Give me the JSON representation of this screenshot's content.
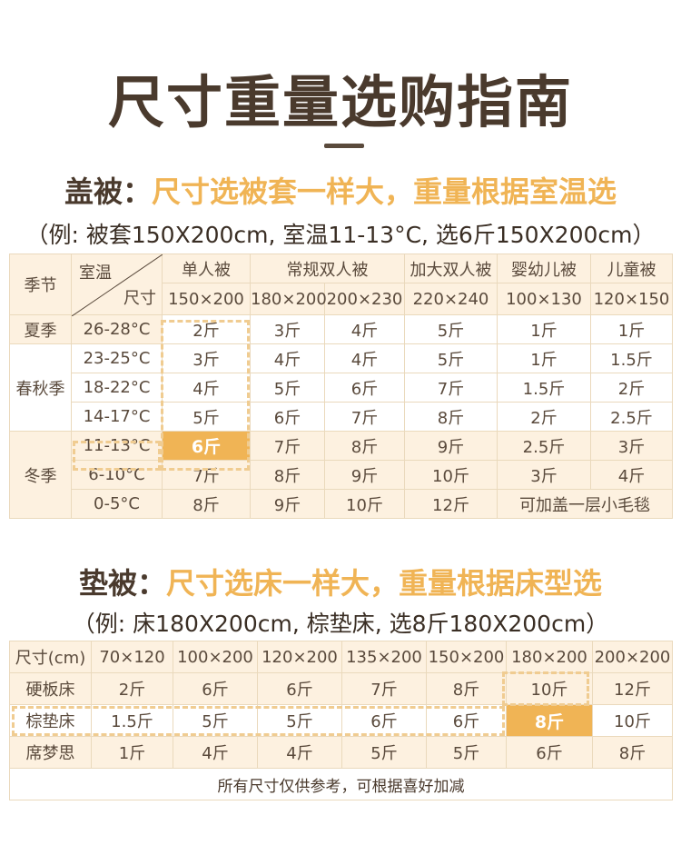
{
  "title": "尺寸重量选购指南",
  "quilt": {
    "heading_a": "盖被：",
    "heading_b": "尺寸选被套一样大，重量根据室温选",
    "example": "（例: 被套150X200cm, 室温11-13°C, 选6斤150X200cm）",
    "corner_top": "室温",
    "corner_bottom": "尺寸",
    "season_header": "季节",
    "groups": [
      "单人被",
      "常规双人被",
      "加大双人被",
      "婴幼儿被",
      "儿童被"
    ],
    "sizes": [
      "150×200",
      "180×200",
      "200×230",
      "220×240",
      "100×130",
      "120×150"
    ],
    "seasons": [
      "夏季",
      "春秋季",
      "冬季"
    ],
    "rows": [
      {
        "temp": "26-28°C",
        "values": [
          "2斤",
          "3斤",
          "4斤",
          "5斤",
          "1斤",
          "1斤"
        ]
      },
      {
        "temp": "23-25°C",
        "values": [
          "3斤",
          "4斤",
          "4斤",
          "5斤",
          "1斤",
          "1.5斤"
        ]
      },
      {
        "temp": "18-22°C",
        "values": [
          "4斤",
          "5斤",
          "6斤",
          "7斤",
          "1.5斤",
          "2斤"
        ]
      },
      {
        "temp": "14-17°C",
        "values": [
          "5斤",
          "6斤",
          "7斤",
          "8斤",
          "2斤",
          "2.5斤"
        ]
      },
      {
        "temp": "11-13°C",
        "values": [
          "6斤",
          "7斤",
          "8斤",
          "9斤",
          "2.5斤",
          "3斤"
        ]
      },
      {
        "temp": "6-10°C",
        "values": [
          "7斤",
          "8斤",
          "9斤",
          "10斤",
          "3斤",
          "4斤"
        ]
      },
      {
        "temp": "0-5°C",
        "values": [
          "8斤",
          "9斤",
          "10斤",
          "12斤"
        ]
      }
    ],
    "last_row_note": "可加盖一层小毛毯",
    "highlight_color": "#f0b455"
  },
  "pad": {
    "heading_a": "垫被：",
    "heading_b": "尺寸选床一样大，重量根据床型选",
    "example": "（例: 床180X200cm, 棕垫床, 选8斤180X200cm）",
    "size_header": "尺寸(cm)",
    "sizes": [
      "70×120",
      "100×200",
      "120×200",
      "135×200",
      "150×200",
      "180×200",
      "200×200"
    ],
    "rows": [
      {
        "bed": "硬板床",
        "values": [
          "2斤",
          "6斤",
          "6斤",
          "7斤",
          "8斤",
          "10斤",
          "12斤"
        ]
      },
      {
        "bed": "棕垫床",
        "values": [
          "1.5斤",
          "5斤",
          "5斤",
          "6斤",
          "6斤",
          "8斤",
          "10斤"
        ]
      },
      {
        "bed": "席梦思",
        "values": [
          "1斤",
          "4斤",
          "4斤",
          "5斤",
          "5斤",
          "6斤",
          "8斤"
        ]
      }
    ],
    "footer_note": "所有尺寸仅供参考，可根据喜好加减"
  }
}
